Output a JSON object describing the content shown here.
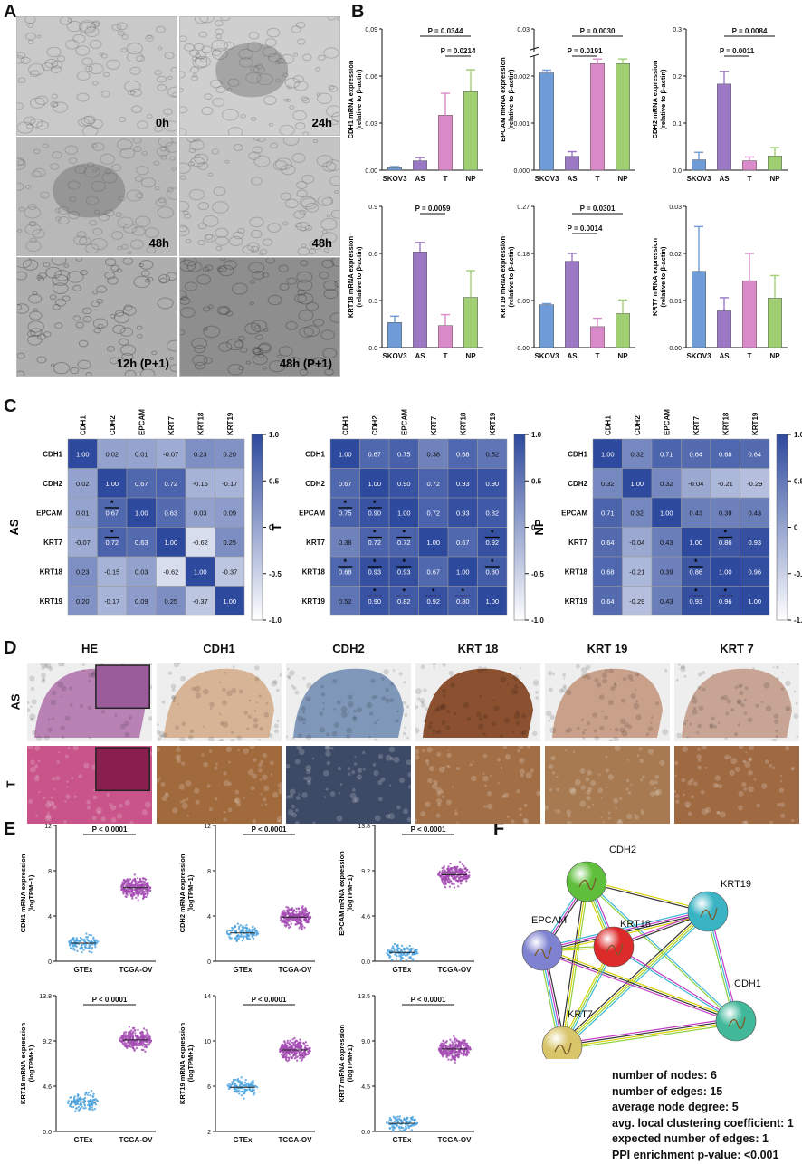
{
  "panels": {
    "A": "A",
    "B": "B",
    "C": "C",
    "D": "D",
    "E": "E",
    "F": "F"
  },
  "panel_a": {
    "images": [
      {
        "label": "0h",
        "tone": "#c9c9c9"
      },
      {
        "label": "24h",
        "tone": "#cfcfcf"
      },
      {
        "label": "48h",
        "tone": "#b8b8b8"
      },
      {
        "label": "48h",
        "tone": "#c4c4c4"
      },
      {
        "label": "12h (P+1)",
        "tone": "#aeaeae"
      },
      {
        "label": "48h (P+1)",
        "tone": "#8e8e8e"
      }
    ]
  },
  "chart_data": [
    {
      "type": "bar",
      "ylabel": "CDH1 mRNA expression\n(relative to β-actin)",
      "categories": [
        "SKOV3",
        "AS",
        "T",
        "NP"
      ],
      "values": [
        0.0015,
        0.006,
        0.035,
        0.05
      ],
      "errors": [
        0.0008,
        0.002,
        0.014,
        0.014
      ],
      "ylim": [
        0,
        0.09
      ],
      "yticks": [
        "0.00",
        "0.03",
        "0.06",
        "0.09"
      ],
      "pvalues": [
        {
          "text": "P = 0.0344",
          "from": 1,
          "to": 3,
          "level": 0
        },
        {
          "text": "P = 0.0214",
          "from": 2,
          "to": 3,
          "level": 1
        }
      ]
    },
    {
      "type": "bar",
      "ylabel": "EPCAM mRNA expression\n(relative to β-actin)",
      "categories": [
        "SKOV3",
        "AS",
        "T",
        "NP"
      ],
      "values": [
        0.0021,
        0.0003,
        0.0023,
        0.0023
      ],
      "errors": [
        6e-05,
        0.0001,
        0.0001,
        0.0001
      ],
      "ylim": [
        0,
        0.03
      ],
      "axis_break": true,
      "yticks": [
        "0.000",
        "0.001",
        "0.002",
        "0.03"
      ],
      "pvalues": [
        {
          "text": "P = 0.0030",
          "from": 1,
          "to": 3,
          "level": 0
        },
        {
          "text": "P = 0.0191",
          "from": 1,
          "to": 2,
          "level": 1
        }
      ]
    },
    {
      "type": "bar",
      "ylabel": "CDH2 mRNA expression\n(relative to β-actin)",
      "categories": [
        "SKOV3",
        "AS",
        "T",
        "NP"
      ],
      "values": [
        0.022,
        0.183,
        0.02,
        0.03
      ],
      "errors": [
        0.016,
        0.027,
        0.008,
        0.018
      ],
      "ylim": [
        0,
        0.3
      ],
      "yticks": [
        "0.0",
        "0.1",
        "0.2",
        "0.3"
      ],
      "pvalues": [
        {
          "text": "P = 0.0084",
          "from": 1,
          "to": 3,
          "level": 0
        },
        {
          "text": "P = 0.0011",
          "from": 1,
          "to": 2,
          "level": 1
        }
      ]
    },
    {
      "type": "bar",
      "ylabel": "KRT18 mRNA expression\n(relative to β-actin)",
      "categories": [
        "SKOV3",
        "AS",
        "T",
        "NP"
      ],
      "values": [
        0.16,
        0.61,
        0.14,
        0.32
      ],
      "errors": [
        0.04,
        0.06,
        0.07,
        0.17
      ],
      "ylim": [
        0,
        0.9
      ],
      "yticks": [
        "0.0",
        "0.3",
        "0.6",
        "0.9"
      ],
      "pvalues": [
        {
          "text": "P = 0.0059",
          "from": 1,
          "to": 2,
          "level": 0
        }
      ]
    },
    {
      "type": "bar",
      "ylabel": "KRT19 mRNA expression\n(relative to β-actin)",
      "categories": [
        "SKOV3",
        "AS",
        "T",
        "NP"
      ],
      "values": [
        0.082,
        0.165,
        0.04,
        0.065
      ],
      "errors": [
        0.002,
        0.015,
        0.016,
        0.026
      ],
      "ylim": [
        0,
        0.27
      ],
      "yticks": [
        "0.00",
        "0.09",
        "0.18",
        "0.27"
      ],
      "pvalues": [
        {
          "text": "P = 0.0301",
          "from": 1,
          "to": 3,
          "level": 0
        },
        {
          "text": "P = 0.0014",
          "from": 1,
          "to": 2,
          "level": 1
        }
      ]
    },
    {
      "type": "bar",
      "ylabel": "KRT7 mRNA expression\n(relative to β-actin)",
      "categories": [
        "SKOV3",
        "AS",
        "T",
        "NP"
      ],
      "values": [
        0.0162,
        0.0078,
        0.0142,
        0.0105
      ],
      "errors": [
        0.0095,
        0.0028,
        0.0058,
        0.0048
      ],
      "ylim": [
        0,
        0.03
      ],
      "yticks": [
        "0.00",
        "0.01",
        "0.02",
        "0.03"
      ],
      "pvalues": []
    }
  ],
  "heatmaps": [
    {
      "group": "AS",
      "genes": [
        "CDH1",
        "CDH2",
        "EPCAM",
        "KRT7",
        "KRT18",
        "KRT19"
      ],
      "values": [
        [
          1.0,
          0.02,
          0.01,
          -0.07,
          0.23,
          0.2
        ],
        [
          0.02,
          1.0,
          0.67,
          0.72,
          -0.15,
          -0.17
        ],
        [
          0.01,
          0.67,
          1.0,
          0.63,
          0.03,
          0.09
        ],
        [
          -0.07,
          0.72,
          0.63,
          1.0,
          -0.62,
          0.25
        ],
        [
          0.23,
          -0.15,
          0.03,
          -0.62,
          1.0,
          -0.37
        ],
        [
          0.2,
          -0.17,
          0.09,
          0.25,
          -0.37,
          1.0
        ]
      ],
      "labels": [
        [
          "1.00",
          "0.02",
          "0.01",
          "-0.07",
          "0.23",
          "0.20"
        ],
        [
          "0.02",
          "1.00",
          "0.67",
          "0.72",
          "-0.15",
          "-0.17"
        ],
        [
          "0.01",
          "0.67",
          "1.00",
          "0.63",
          "0.03",
          "0.09"
        ],
        [
          "-0.07",
          "0.72",
          "0.63",
          "1.00",
          "-0.62",
          "0.25"
        ],
        [
          "0.23",
          "-0.15",
          "0.03",
          "-0.62",
          "1.00",
          "-0.37"
        ],
        [
          "0.20",
          "-0.17",
          "0.09",
          "0.25",
          "-0.37",
          "1.00"
        ]
      ],
      "stars": [
        [
          2,
          1
        ],
        [
          3,
          1
        ]
      ]
    },
    {
      "group": "T",
      "genes": [
        "CDH1",
        "CDH2",
        "EPCAM",
        "KRT7",
        "KRT18",
        "KRT19"
      ],
      "values": [
        [
          1.0,
          0.67,
          0.75,
          0.38,
          0.68,
          0.52
        ],
        [
          0.67,
          1.0,
          0.9,
          0.72,
          0.93,
          0.9
        ],
        [
          0.75,
          0.9,
          1.0,
          0.72,
          0.93,
          0.82
        ],
        [
          0.38,
          0.72,
          0.72,
          1.0,
          0.67,
          0.92
        ],
        [
          0.68,
          0.93,
          0.93,
          0.67,
          1.0,
          0.8
        ],
        [
          0.52,
          0.9,
          0.82,
          0.92,
          0.8,
          1.0
        ]
      ],
      "labels": [
        [
          "1.00",
          "0.67",
          "0.75",
          "0.38",
          "0.68",
          "0.52"
        ],
        [
          "0.67",
          "1.00",
          "0.90",
          "0.72",
          "0.93",
          "0.90"
        ],
        [
          "0.75",
          "0.90",
          "1.00",
          "0.72",
          "0.93",
          "0.82"
        ],
        [
          "0.38",
          "0.72",
          "0.72",
          "1.00",
          "0.67",
          "0.92"
        ],
        [
          "0.68",
          "0.93",
          "0.93",
          "0.67",
          "1.00",
          "0.80"
        ],
        [
          "0.52",
          "0.90",
          "0.82",
          "0.92",
          "0.80",
          "1.00"
        ]
      ],
      "stars": [
        [
          2,
          0
        ],
        [
          2,
          1
        ],
        [
          3,
          1
        ],
        [
          3,
          2
        ],
        [
          3,
          5
        ],
        [
          4,
          0
        ],
        [
          4,
          1
        ],
        [
          4,
          2
        ],
        [
          4,
          5
        ],
        [
          5,
          1
        ],
        [
          5,
          2
        ],
        [
          5,
          3
        ],
        [
          5,
          4
        ]
      ]
    },
    {
      "group": "NP",
      "genes": [
        "CDH1",
        "CDH2",
        "EPCAM",
        "KRT7",
        "KRT18",
        "KRT19"
      ],
      "values": [
        [
          1.0,
          0.32,
          0.71,
          0.64,
          0.68,
          0.64
        ],
        [
          0.32,
          1.0,
          0.32,
          -0.04,
          -0.21,
          -0.29
        ],
        [
          0.71,
          0.32,
          1.0,
          0.43,
          0.39,
          0.43
        ],
        [
          0.64,
          -0.04,
          0.43,
          1.0,
          0.86,
          0.93
        ],
        [
          0.68,
          -0.21,
          0.39,
          0.86,
          1.0,
          0.96
        ],
        [
          0.64,
          -0.29,
          0.43,
          0.93,
          0.96,
          1.0
        ]
      ],
      "labels": [
        [
          "1.00",
          "0.32",
          "0.71",
          "0.64",
          "0.68",
          "0.64"
        ],
        [
          "0.32",
          "1.00",
          "0.32",
          "-0.04",
          "-0.21",
          "-0.29"
        ],
        [
          "0.71",
          "0.32",
          "1.00",
          "0.43",
          "0.39",
          "0.43"
        ],
        [
          "0.64",
          "-0.04",
          "0.43",
          "1.00",
          "0.86",
          "0.93"
        ],
        [
          "0.68",
          "-0.21",
          "0.39",
          "0.86",
          "1.00",
          "0.96"
        ],
        [
          "0.64",
          "-0.29",
          "0.43",
          "0.93",
          "0.96",
          "1.00"
        ]
      ],
      "stars": [
        [
          3,
          4
        ],
        [
          4,
          3
        ],
        [
          5,
          3
        ],
        [
          5,
          4
        ]
      ]
    }
  ],
  "colorbar": {
    "ticks": [
      "1.0",
      "0.5",
      "0",
      "-0.5",
      "-1.0"
    ],
    "high": "#2e4a9e",
    "low": "#ffffff"
  },
  "panel_d": {
    "columns": [
      "HE",
      "CDH1",
      "CDH2",
      "KRT 18",
      "KRT 19",
      "KRT 7"
    ],
    "rows": [
      "AS",
      "T"
    ],
    "tones": [
      [
        "#b883b4",
        "#d8b497",
        "#7f97b8",
        "#8a5030",
        "#c9a08a",
        "#c7a494"
      ],
      [
        "#c8548a",
        "#a06a3c",
        "#3d4a66",
        "#a26e45",
        "#a77a52",
        "#9f6a42"
      ]
    ]
  },
  "panel_e": [
    {
      "ylabel": "CDH1 mRNA expression\n(logTPM+1)",
      "categories": [
        "GTEx",
        "TCGA-OV"
      ],
      "yticks": [
        "0",
        "4",
        "8",
        "12"
      ],
      "ylim": [
        0,
        12
      ],
      "medians": [
        1.6,
        6.5
      ],
      "p": "P < 0.0001"
    },
    {
      "ylabel": "CDH2 mRNA expression\n(logTPM+1)",
      "categories": [
        "GTEx",
        "TCGA-OV"
      ],
      "yticks": [
        "0",
        "4",
        "8",
        "12"
      ],
      "ylim": [
        0,
        12
      ],
      "medians": [
        2.5,
        3.9
      ],
      "p": "P < 0.0001"
    },
    {
      "ylabel": "EPCAM mRNA expression\n(logTPM+1)",
      "categories": [
        "GTEx",
        "TCGA-OV"
      ],
      "yticks": [
        "0.0",
        "4.6",
        "9.2",
        "13.8"
      ],
      "ylim": [
        0,
        13.8
      ],
      "medians": [
        0.9,
        8.8
      ],
      "p": "P < 0.0001"
    },
    {
      "ylabel": "KRT18 mRNA expression\n(logTPM+1)",
      "categories": [
        "GTEx",
        "TCGA-OV"
      ],
      "yticks": [
        "0.0",
        "4.6",
        "9.2",
        "13.8"
      ],
      "ylim": [
        0,
        13.8
      ],
      "medians": [
        3.0,
        9.3
      ],
      "p": "P < 0.0001"
    },
    {
      "ylabel": "KRT19 mRNA expression\n(logTPM+1)",
      "categories": [
        "GTEx",
        "TCGA-OV"
      ],
      "yticks": [
        "2",
        "6",
        "10",
        "14"
      ],
      "ylim": [
        2,
        14
      ],
      "medians": [
        5.9,
        9.2
      ],
      "p": "P < 0.0001"
    },
    {
      "ylabel": "KRT7 mRNA expression\n(logTPM+1)",
      "categories": [
        "GTEx",
        "TCGA-OV"
      ],
      "yticks": [
        "0.0",
        "4.5",
        "9.0",
        "13.5"
      ],
      "ylim": [
        0,
        13.5
      ],
      "medians": [
        0.8,
        8.2
      ],
      "p": "P < 0.0001"
    }
  ],
  "network": {
    "nodes": [
      {
        "name": "CDH2",
        "color": "#5fbf3c"
      },
      {
        "name": "KRT19",
        "color": "#3ab4c4"
      },
      {
        "name": "EPCAM",
        "color": "#7f82d0"
      },
      {
        "name": "KRT18",
        "color": "#dd2a2a"
      },
      {
        "name": "CDH1",
        "color": "#42b89a"
      },
      {
        "name": "KRT7",
        "color": "#d8c56a"
      }
    ],
    "edge_colors": [
      "#d6d200",
      "#333333",
      "#c63cc6",
      "#3cb8d6",
      "#8fd13f"
    ],
    "stats": [
      "number of nodes: 6",
      "number of edges: 15",
      "average node degree: 5",
      "avg. local clustering coefficient: 1",
      "expected number of edges: 1",
      "PPI enrichment p-value: <0.001"
    ]
  }
}
